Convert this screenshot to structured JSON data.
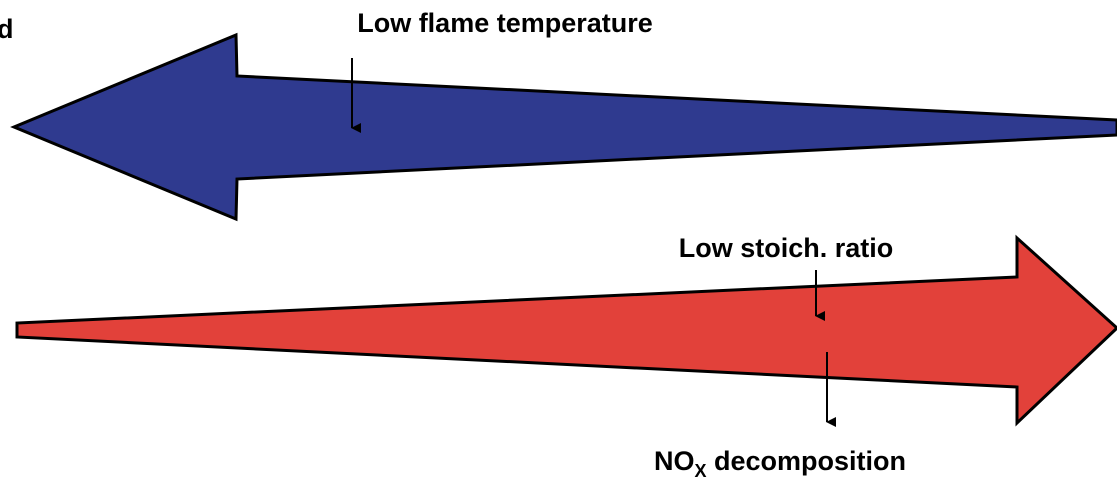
{
  "panel_letter": "d",
  "labels": {
    "low_flame_temperature": "Low flame temperature",
    "low_stoich_ratio": "Low stoich. ratio",
    "nox_main": "NO",
    "nox_subscript": "X",
    "nox_rest": " decomposition"
  },
  "colors": {
    "blue_arrow": "#2f3a8f",
    "red_arrow": "#e2413a",
    "outline": "#000000"
  }
}
